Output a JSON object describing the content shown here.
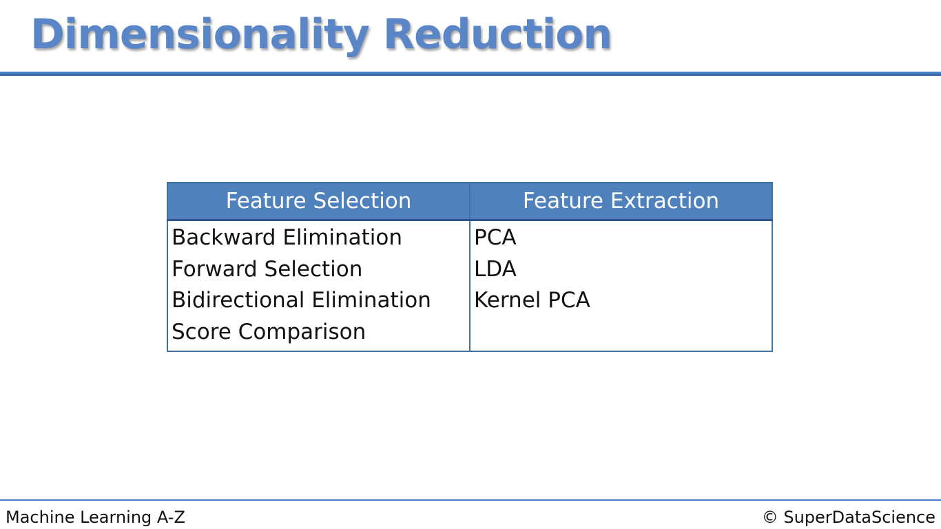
{
  "slide": {
    "title": "Dimensionality Reduction"
  },
  "table": {
    "headers": [
      "Feature Selection",
      "Feature Extraction"
    ],
    "feature_selection": [
      "Backward Elimination",
      "Forward Selection",
      "Bidirectional Elimination",
      "Score Comparison"
    ],
    "feature_extraction": [
      "PCA",
      "LDA",
      "Kernel PCA"
    ]
  },
  "footer": {
    "course": "Machine Learning A-Z",
    "copyright": "© SuperDataScience"
  },
  "colors": {
    "title": "#5a86c7",
    "header_fill": "#4f81bd",
    "border": "#41719c"
  }
}
